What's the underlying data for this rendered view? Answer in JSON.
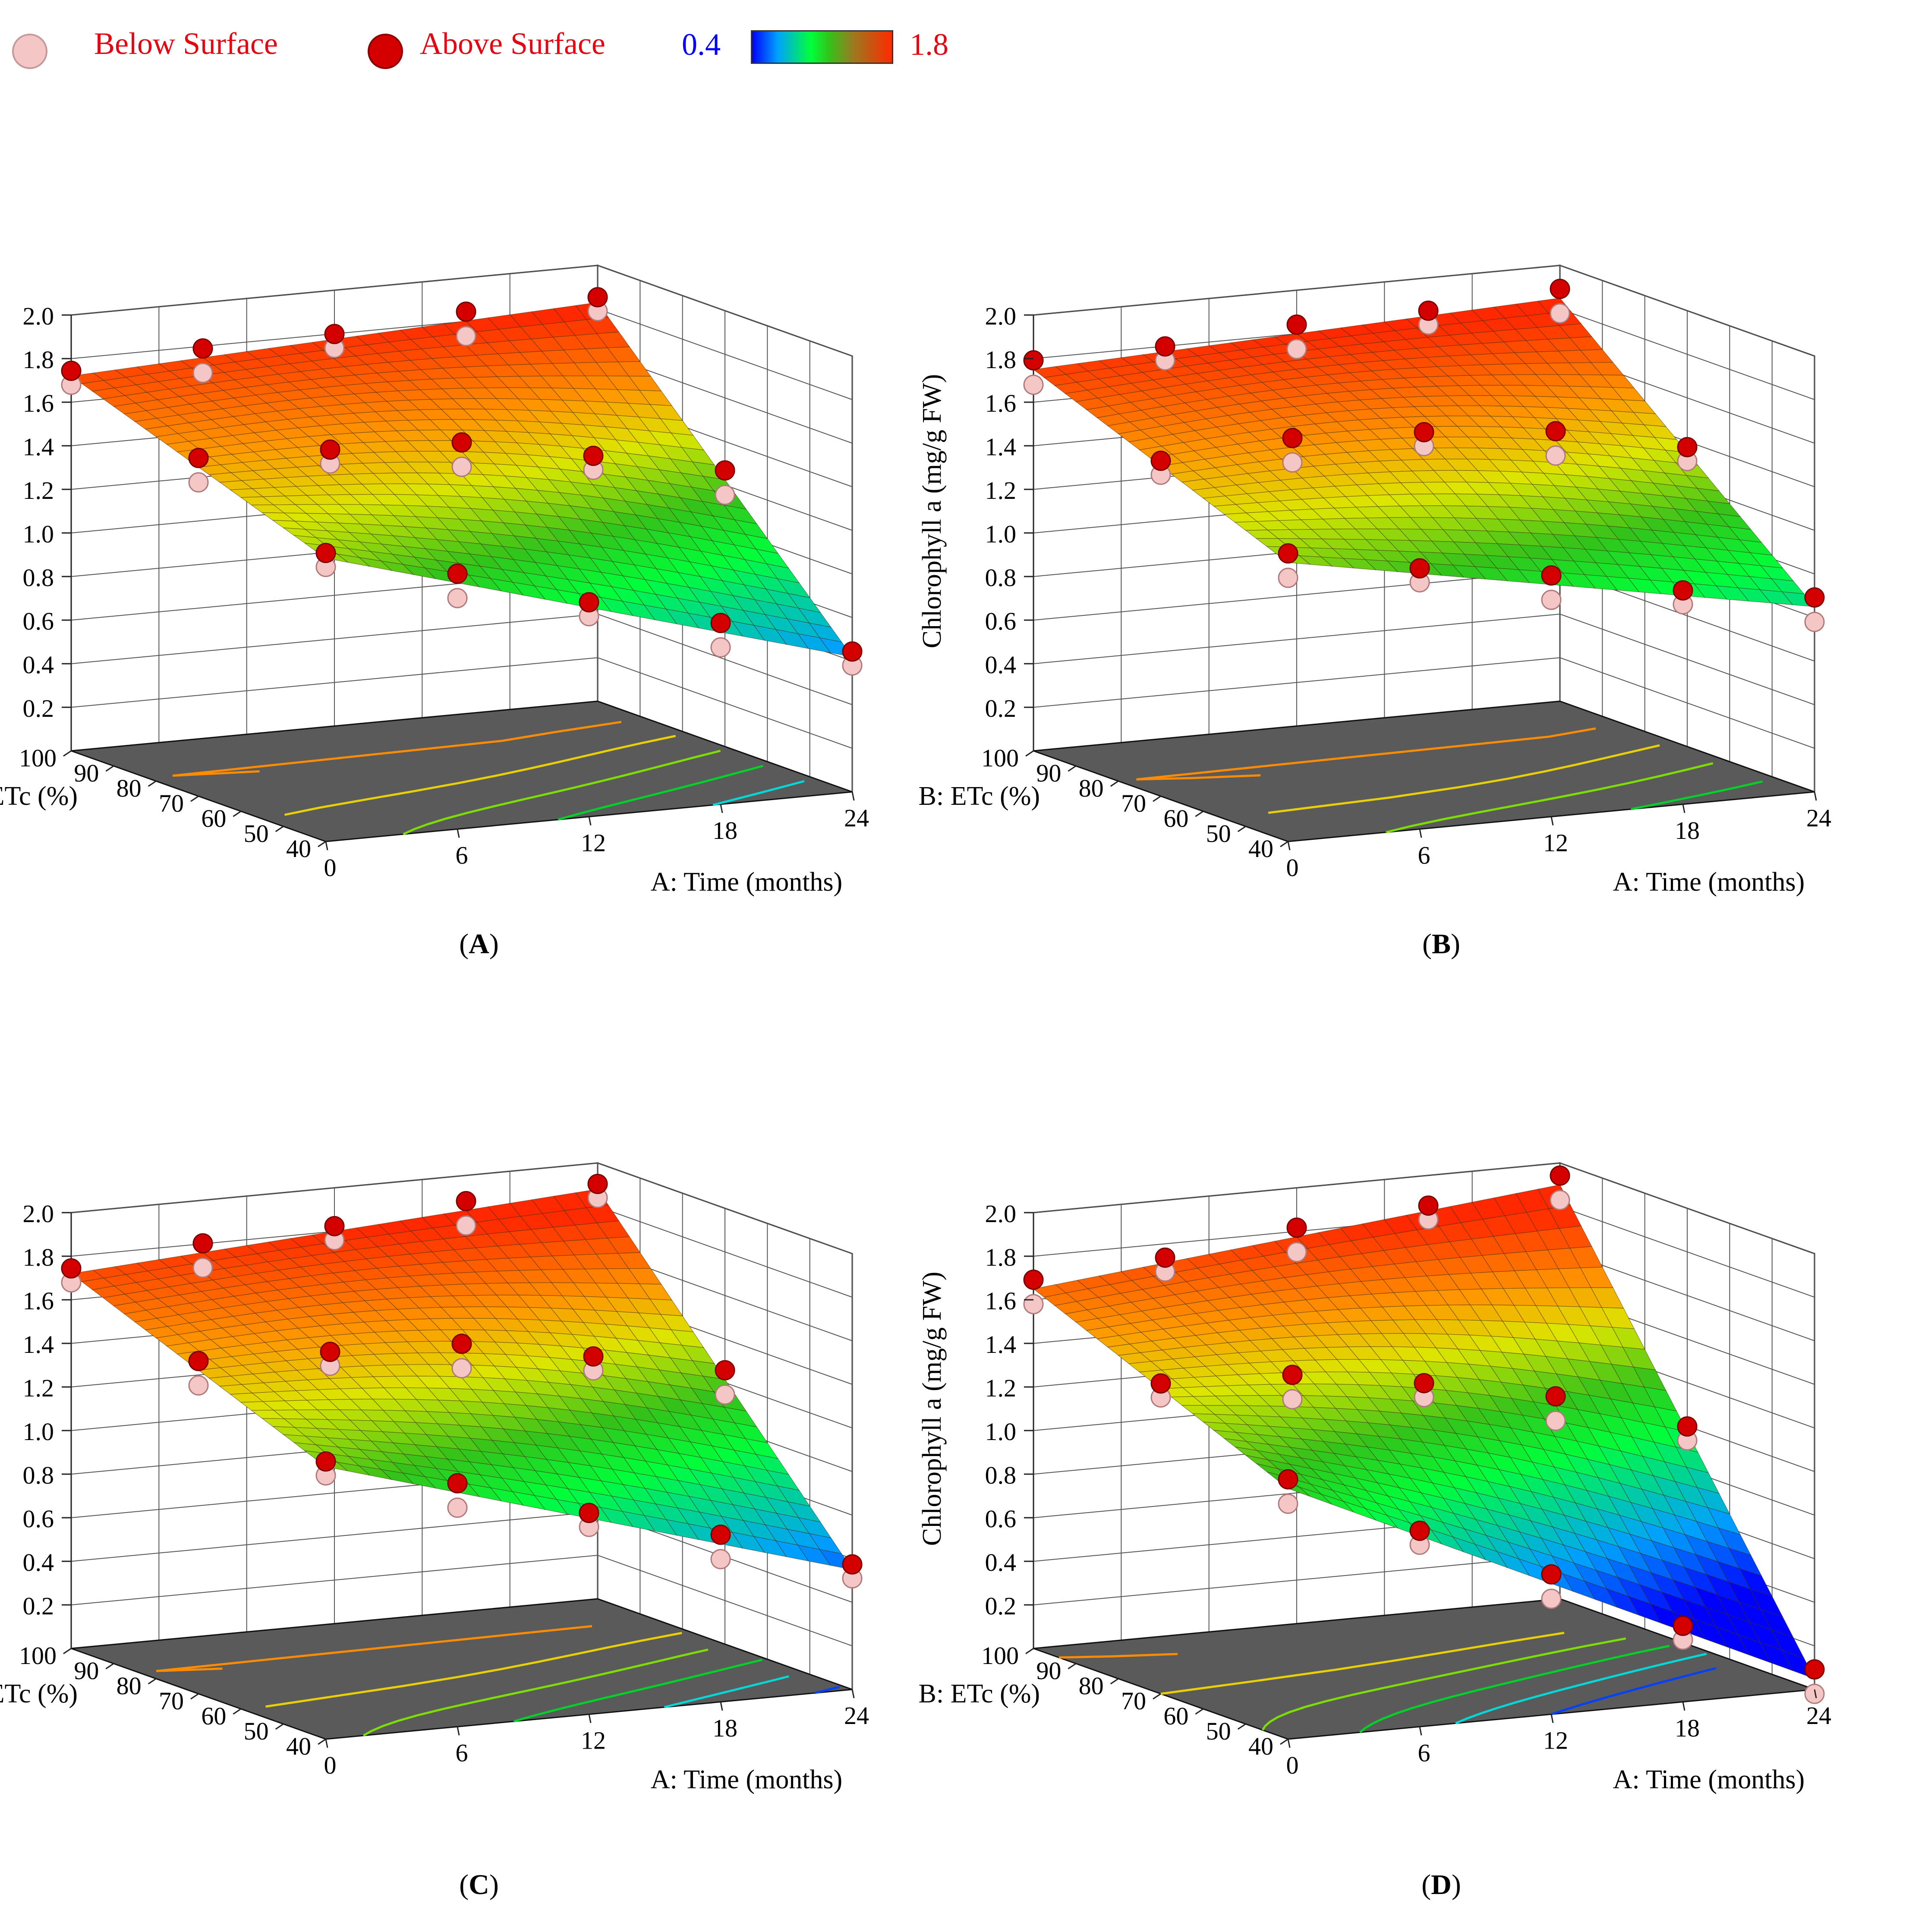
{
  "legend": {
    "below_label": "Below Surface",
    "above_label": "Above Surface",
    "scale_min": "0.4",
    "scale_max": "1.8",
    "below_color": "#f4c6c6",
    "above_color": "#d40000",
    "text_color": "#e30613",
    "min_color": "#0000ff",
    "max_color": "#e30613"
  },
  "axes": {
    "z_label": "Chlorophyll a (mg/g FW)",
    "y_label": "B: ETc (%)",
    "x_label": "A: Time (months)",
    "z_ticks": [
      "0.2",
      "0.4",
      "0.6",
      "0.8",
      "1.0",
      "1.2",
      "1.4",
      "1.6",
      "1.8",
      "2.0"
    ],
    "y_ticks": [
      "100",
      "90",
      "80",
      "70",
      "60",
      "50",
      "40"
    ],
    "x_ticks": [
      "0",
      "6",
      "12",
      "18",
      "24"
    ]
  },
  "chart_data": [
    {
      "panel": "A",
      "type": "surface",
      "xlabel": "A: Time (months)",
      "ylabel": "B: ETc (%)",
      "zlabel": "Chlorophyll a (mg/g FW)",
      "xlim": [
        0,
        24
      ],
      "ylim": [
        40,
        100
      ],
      "zlim": [
        0.0,
        2.0
      ],
      "surface_corners": {
        "t0_etc40": 1.3,
        "t0_etc100": 1.72,
        "t24_etc40": 0.62,
        "t24_etc100": 1.83
      },
      "color_scale": [
        0.4,
        1.8
      ]
    },
    {
      "panel": "B",
      "type": "surface",
      "xlabel": "A: Time (months)",
      "ylabel": "B: ETc (%)",
      "zlabel": "Chlorophyll a (mg/g FW)",
      "xlim": [
        0,
        24
      ],
      "ylim": [
        40,
        100
      ],
      "zlim": [
        0.0,
        2.0
      ],
      "surface_corners": {
        "t0_etc40": 1.28,
        "t0_etc100": 1.75,
        "t24_etc40": 0.85,
        "t24_etc100": 1.85
      },
      "color_scale": [
        0.4,
        1.8
      ]
    },
    {
      "panel": "C",
      "type": "surface",
      "xlabel": "A: Time (months)",
      "ylabel": "B: ETc (%)",
      "zlabel": "Chlorophyll a (mg/g FW)",
      "xlim": [
        0,
        24
      ],
      "ylim": [
        40,
        100
      ],
      "zlim": [
        0.0,
        2.0
      ],
      "surface_corners": {
        "t0_etc40": 1.25,
        "t0_etc100": 1.72,
        "t24_etc40": 0.55,
        "t24_etc100": 1.88
      },
      "color_scale": [
        0.4,
        1.8
      ]
    },
    {
      "panel": "D",
      "type": "surface",
      "xlabel": "A: Time (months)",
      "ylabel": "B: ETc (%)",
      "zlabel": "Chlorophyll a (mg/g FW)",
      "xlim": [
        0,
        24
      ],
      "ylim": [
        40,
        100
      ],
      "zlim": [
        0.0,
        2.0
      ],
      "surface_corners": {
        "t0_etc40": 1.15,
        "t0_etc100": 1.65,
        "t24_etc40": 0.05,
        "t24_etc100": 1.9
      },
      "color_scale": [
        0.4,
        1.8
      ]
    }
  ]
}
